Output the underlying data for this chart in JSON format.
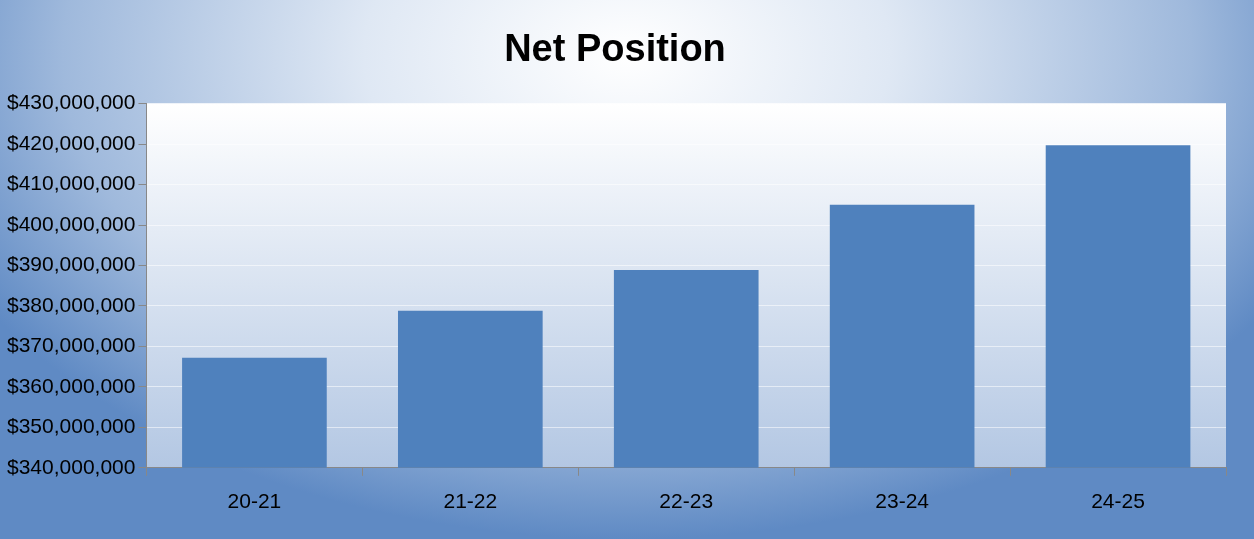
{
  "chart_data": {
    "type": "bar",
    "title": "Net Position",
    "categories": [
      "20-21",
      "21-22",
      "22-23",
      "23-24",
      "24-25"
    ],
    "values": [
      367200000,
      378800000,
      388900000,
      405000000,
      419700000
    ],
    "color": "#4f81bd",
    "ylim": [
      340000000,
      430000000
    ],
    "yticks": [
      {
        "value": 340000000,
        "label": "$340,000,000"
      },
      {
        "value": 350000000,
        "label": "$350,000,000"
      },
      {
        "value": 360000000,
        "label": "$360,000,000"
      },
      {
        "value": 370000000,
        "label": "$370,000,000"
      },
      {
        "value": 380000000,
        "label": "$380,000,000"
      },
      {
        "value": 390000000,
        "label": "$390,000,000"
      },
      {
        "value": 400000000,
        "label": "$400,000,000"
      },
      {
        "value": 410000000,
        "label": "$410,000,000"
      },
      {
        "value": 420000000,
        "label": "$420,000,000"
      },
      {
        "value": 430000000,
        "label": "$430,000,000"
      }
    ],
    "grid": "y",
    "legend": false
  }
}
